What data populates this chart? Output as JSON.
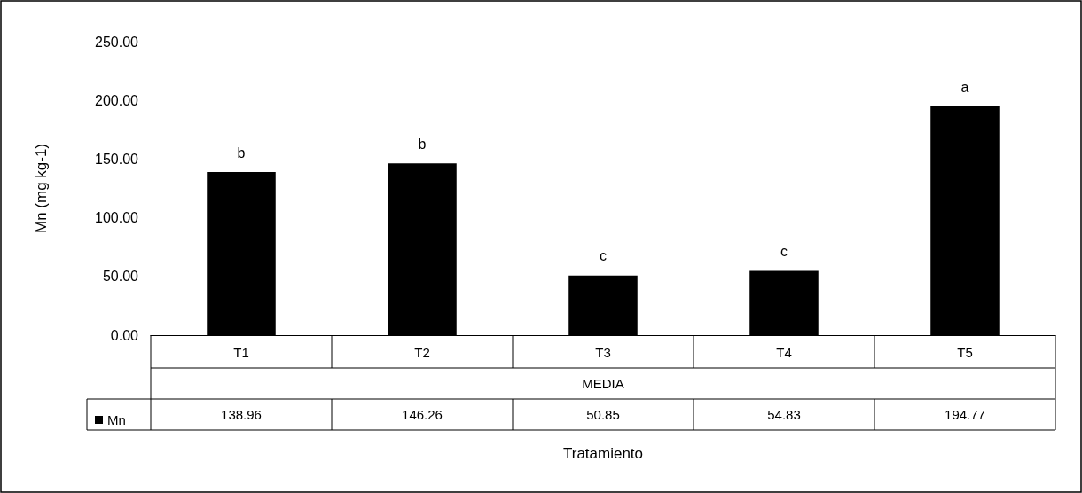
{
  "chart_data": {
    "type": "bar",
    "ylabel": "Mn (mg kg-1)",
    "categories": [
      "T1",
      "T2",
      "T3",
      "T4",
      "T5"
    ],
    "series": [
      {
        "name": "Mn",
        "color": "#000000",
        "values": [
          138.96,
          146.26,
          50.85,
          54.83,
          194.77
        ]
      }
    ],
    "ylim": [
      0,
      250
    ],
    "yticks": [
      {
        "value": 0,
        "label": "0.00"
      },
      {
        "value": 50,
        "label": "50.00"
      },
      {
        "value": 100,
        "label": "100.00"
      },
      {
        "value": 150,
        "label": "150.00"
      },
      {
        "value": 200,
        "label": "200.00"
      },
      {
        "value": 250,
        "label": "250.00"
      }
    ],
    "data_labels": true,
    "legend": "bottom left",
    "grid": false,
    "annotations": [
      {
        "text": "b",
        "x": "T1",
        "y": 138.96
      },
      {
        "text": "b",
        "x": "T2",
        "y": 146.26
      },
      {
        "text": "c",
        "x": "T3",
        "y": 50.85
      },
      {
        "text": "c",
        "x": "T4",
        "y": 54.83
      },
      {
        "text": "a",
        "x": "T5",
        "y": 194.77
      },
      "MEDIA",
      "Tratamiento"
    ]
  }
}
